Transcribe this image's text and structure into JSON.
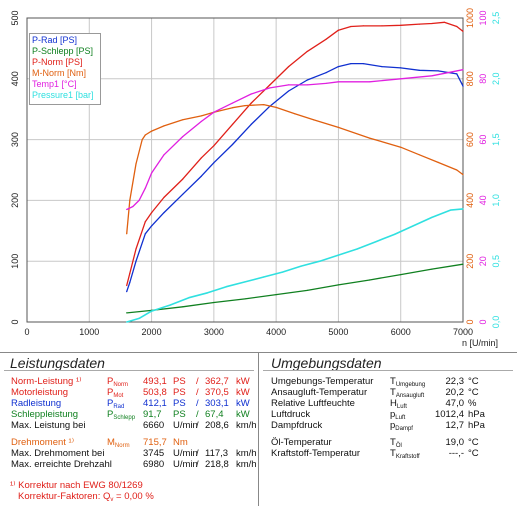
{
  "chart_data": {
    "type": "line",
    "x_unit": "n [U/min]",
    "x_ticks": [
      "0",
      "1000",
      "2000",
      "3000",
      "4000",
      "5000",
      "6000",
      "7000"
    ],
    "xlim": [
      0,
      7000
    ],
    "y_left_ticks": [
      "0",
      "100",
      "200",
      "300",
      "400",
      "500"
    ],
    "y_left_range": [
      0,
      500
    ],
    "y_nm_ticks": [
      "0",
      "200",
      "400",
      "600",
      "800",
      "1000"
    ],
    "y_nm_range": [
      0,
      1000
    ],
    "y_temp_ticks": [
      "0",
      "20",
      "40",
      "60",
      "80",
      "100"
    ],
    "y_temp_range": [
      0,
      100
    ],
    "y_bar_ticks": [
      "0,0",
      "0,5",
      "1,0",
      "1,5",
      "2,0",
      "2,5"
    ],
    "y_bar_range": [
      0,
      2.5
    ],
    "legend": [
      {
        "label": "P-Rad [PS]",
        "color": "#1030d0"
      },
      {
        "label": "P-Schlepp [PS]",
        "color": "#108020"
      },
      {
        "label": "P-Norm [PS]",
        "color": "#e0201a"
      },
      {
        "label": "M-Norm [Nm]",
        "color": "#e06010"
      },
      {
        "label": "Temp1 [°C]",
        "color": "#e020e0"
      },
      {
        "label": "Pressure1 [bar]",
        "color": "#30e0e0"
      }
    ],
    "series": [
      {
        "name": "P-Rad [PS]",
        "axis": "ps",
        "color": "#1030d0",
        "x": [
          1600,
          1650,
          1750,
          1900,
          2000,
          2200,
          2500,
          2800,
          3000,
          3300,
          3600,
          3900,
          4200,
          4500,
          4800,
          5000,
          5200,
          5400,
          5700,
          6000,
          6300,
          6600,
          6900,
          7000
        ],
        "y": [
          50,
          65,
          100,
          145,
          158,
          180,
          210,
          240,
          262,
          292,
          325,
          355,
          380,
          398,
          410,
          420,
          425,
          425,
          420,
          418,
          414,
          413,
          408,
          388
        ]
      },
      {
        "name": "P-Schlepp [PS]",
        "axis": "ps",
        "color": "#108020",
        "x": [
          1600,
          2000,
          2500,
          3000,
          3500,
          4000,
          4500,
          5000,
          5500,
          6000,
          6500,
          7000
        ],
        "y": [
          15,
          19,
          25,
          32,
          38,
          45,
          52,
          61,
          69,
          78,
          87,
          95
        ]
      },
      {
        "name": "P-Norm [PS]",
        "axis": "ps",
        "color": "#e0201a",
        "x": [
          1600,
          1650,
          1750,
          1900,
          2000,
          2200,
          2500,
          2800,
          3000,
          3300,
          3600,
          3900,
          4200,
          4500,
          4800,
          5000,
          5200,
          5400,
          5700,
          6000,
          6300,
          6500,
          6700,
          6900,
          7000
        ],
        "y": [
          60,
          80,
          120,
          165,
          180,
          205,
          235,
          270,
          290,
          325,
          360,
          390,
          420,
          445,
          465,
          480,
          486,
          487,
          487,
          488,
          490,
          491,
          493,
          486,
          478
        ]
      },
      {
        "name": "M-Norm [Nm]",
        "axis": "nm",
        "color": "#e06010",
        "x": [
          1600,
          1650,
          1750,
          1850,
          1900,
          2000,
          2200,
          2500,
          2800,
          3000,
          3300,
          3500,
          3800,
          4000,
          4300,
          4600,
          5000,
          5500,
          6000,
          6300,
          6600,
          6900,
          7000
        ],
        "y": [
          290,
          400,
          520,
          600,
          615,
          628,
          645,
          665,
          678,
          690,
          705,
          712,
          715,
          706,
          685,
          665,
          640,
          605,
          575,
          550,
          525,
          500,
          485
        ]
      },
      {
        "name": "Temp1 [°C]",
        "axis": "temp",
        "color": "#e020e0",
        "x": [
          1600,
          1700,
          1800,
          1900,
          2000,
          2200,
          2500,
          2800,
          3000,
          3300,
          3600,
          3900,
          4200,
          4500,
          4800,
          5000,
          5500,
          6000,
          6500,
          7000
        ],
        "y": [
          37,
          38,
          40,
          44,
          49,
          55,
          61,
          66,
          69,
          72,
          75,
          77,
          78,
          78,
          78.5,
          79,
          79,
          80,
          81,
          83
        ]
      },
      {
        "name": "Pressure1 [bar]",
        "axis": "bar",
        "color": "#30e0e0",
        "x": [
          1600,
          1800,
          2000,
          2300,
          2600,
          2900,
          3200,
          3500,
          3800,
          4100,
          4400,
          4700,
          5000,
          5300,
          5600,
          5900,
          6200,
          6500,
          6800,
          7000
        ],
        "y": [
          0.0,
          0.03,
          0.09,
          0.14,
          0.2,
          0.24,
          0.29,
          0.33,
          0.37,
          0.41,
          0.46,
          0.5,
          0.55,
          0.6,
          0.66,
          0.72,
          0.79,
          0.86,
          0.92,
          0.93
        ]
      }
    ]
  },
  "leistung": {
    "title": "Leistungsdaten",
    "rows": [
      {
        "label": "Norm-Leistung ¹⁾",
        "sym": "P",
        "sub": "Norm",
        "v1": "493,1",
        "u1": "PS",
        "sep": "/",
        "v2": "362,7",
        "u2": "kW"
      },
      {
        "label": "Motorleistung",
        "sym": "P",
        "sub": "Mot",
        "v1": "503,8",
        "u1": "PS",
        "sep": "/",
        "v2": "370,5",
        "u2": "kW"
      },
      {
        "label": "Radleistung",
        "sym": "P",
        "sub": "Rad",
        "v1": "412,1",
        "u1": "PS",
        "sep": "/",
        "v2": "303,1",
        "u2": "kW"
      },
      {
        "label": "Schleppleistung",
        "sym": "P",
        "sub": "Schlepp",
        "v1": "91,7",
        "u1": "PS",
        "sep": "/",
        "v2": "67,4",
        "u2": "kW"
      },
      {
        "label": "Max. Leistung bei",
        "v1": "6660",
        "u1": "U/min",
        "sep": "/",
        "v2": "208,6",
        "u2": "km/h"
      },
      {
        "label": "Drehmoment ¹⁾",
        "sym": "M",
        "sub": "Norm",
        "v1": "715,7",
        "u1": "Nm"
      },
      {
        "label": "Max. Drehmoment bei",
        "v1": "3745",
        "u1": "U/min",
        "sep": "/",
        "v2": "117,3",
        "u2": "km/h"
      },
      {
        "label": "Max. erreichte Drehzahl",
        "v1": "6980",
        "u1": "U/min",
        "sep": "/",
        "v2": "218,8",
        "u2": "km/h"
      }
    ],
    "footnote1": "¹⁾ Korrektur nach EWG 80/1269",
    "footnote2_prefix": "Korrektur-Faktoren: Q",
    "footnote2_sub": "v",
    "footnote2_suffix": " =   0,00 %"
  },
  "umgebung": {
    "title": "Umgebungsdaten",
    "rows": [
      {
        "label": "Umgebungs-Temperatur",
        "sym": "T",
        "sub": "Umgebung",
        "value": "22,3",
        "unit": "°C"
      },
      {
        "label": "Ansaugluft-Temperatur",
        "sym": "T",
        "sub": "Ansaugluft",
        "value": "20,2",
        "unit": "°C"
      },
      {
        "label": "Relative Luftfeuchte",
        "sym": "H",
        "sub": "Luft",
        "value": "47,0",
        "unit": "%"
      },
      {
        "label": "Luftdruck",
        "sym": "p",
        "sub": "Luft",
        "value": "1012,4",
        "unit": "hPa"
      },
      {
        "label": "Dampfdruck",
        "sym": "p",
        "sub": "Dampf",
        "value": "12,7",
        "unit": "hPa"
      },
      {
        "label": "Öl-Temperatur",
        "sym": "T",
        "sub": "Öl",
        "value": "19,0",
        "unit": "°C"
      },
      {
        "label": "Kraftstoff-Temperatur",
        "sym": "T",
        "sub": "Kraftstoff",
        "value": "---,-",
        "unit": "°C"
      }
    ]
  }
}
